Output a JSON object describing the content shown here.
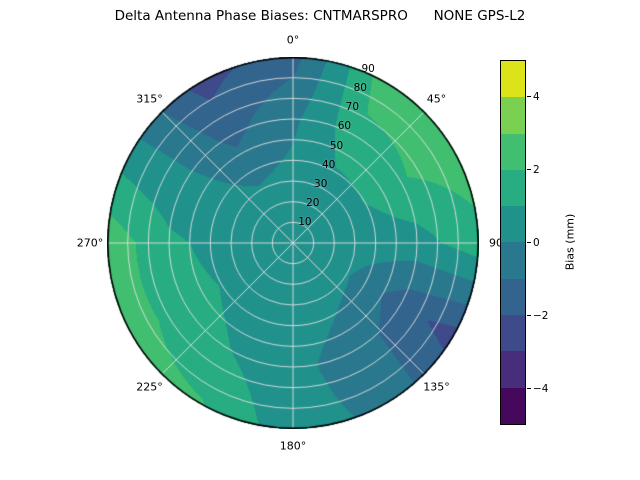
{
  "title": "Delta Antenna Phase Biases: CNTMARSPRO      NONE GPS-L2",
  "chart_data": {
    "type": "heatmap",
    "subtype": "polar_contour",
    "title": "Delta Antenna Phase Biases: CNTMARSPRO      NONE GPS-L2",
    "angular_labels": [
      "0°",
      "45°",
      "90",
      "135°",
      "180°",
      "225°",
      "270°",
      "315°"
    ],
    "angular_degrees": [
      0,
      45,
      90,
      135,
      180,
      225,
      270,
      315
    ],
    "radial_labels": [
      "90",
      "80",
      "70",
      "60",
      "50",
      "40",
      "30",
      "20",
      "10"
    ],
    "radial_values": [
      90,
      80,
      70,
      60,
      50,
      40,
      30,
      20,
      10
    ],
    "rlabel_angle_deg": 22.5,
    "grid_on": true,
    "colorbar": {
      "label": "Bias (mm)",
      "ticks": [
        4,
        2,
        0,
        -2,
        -4
      ],
      "tick_labels": [
        "4",
        "2",
        "0",
        "−2",
        "−4"
      ],
      "range": [
        -5,
        5
      ],
      "levels": [
        -5,
        -4,
        -3,
        -2,
        -1,
        0,
        1,
        2,
        3,
        4,
        5
      ],
      "colors": [
        "#46085c",
        "#472d7b",
        "#3e4a89",
        "#32648e",
        "#2a788e",
        "#21918c",
        "#27ad81",
        "#42be71",
        "#7ad151",
        "#dce319"
      ]
    },
    "grid": {
      "azimuth_deg": [
        0,
        30,
        60,
        90,
        120,
        150,
        180,
        210,
        240,
        270,
        300,
        330
      ],
      "radius": [
        0,
        30,
        60,
        90
      ],
      "values_bias_mm": [
        [
          0.4,
          0.3,
          -0.2,
          -1.4
        ],
        [
          0.4,
          0.6,
          1.6,
          2.6
        ],
        [
          0.4,
          0.6,
          1.9,
          2.7
        ],
        [
          0.4,
          0.4,
          0.6,
          1.6
        ],
        [
          0.4,
          0.1,
          -1.6,
          -2.4
        ],
        [
          0.4,
          0.3,
          -0.5,
          -0.2
        ],
        [
          0.4,
          0.5,
          0.3,
          0.4
        ],
        [
          0.4,
          0.6,
          1.0,
          2.1
        ],
        [
          0.4,
          0.7,
          1.5,
          2.5
        ],
        [
          0.4,
          0.6,
          1.2,
          2.7
        ],
        [
          0.4,
          0.4,
          0.3,
          0.4
        ],
        [
          0.4,
          0.1,
          -1.3,
          -2.4
        ]
      ]
    }
  }
}
